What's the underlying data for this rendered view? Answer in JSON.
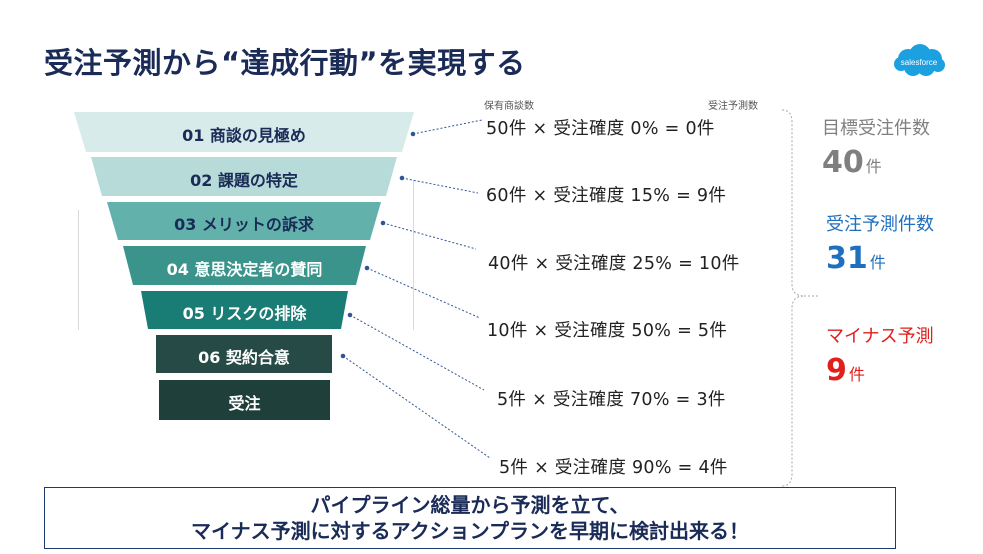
{
  "title": "受注予測から“達成行動”を実現する",
  "logo_text": "salesforce",
  "colors": {
    "title": "#1a2b57",
    "target": "#7f7f7f",
    "forecast": "#1f6fbf",
    "minus": "#e0201c",
    "stage_light_text": "#1a2b57",
    "stage_dark_text": "#ffffff"
  },
  "funnel_stages": [
    {
      "label": "01 商談の見極め",
      "fill": "#d6ebea"
    },
    {
      "label": "02 課題の特定",
      "fill": "#b6dbd8"
    },
    {
      "label": "03 メリットの訴求",
      "fill": "#62b2ab"
    },
    {
      "label": "04 意思決定者の賛同",
      "fill": "#3a948c"
    },
    {
      "label": "05 リスクの排除",
      "fill": "#1a7d75"
    },
    {
      "label": "06 契約合意",
      "fill": "#264a45"
    },
    {
      "label": "受注",
      "fill": "#1f3f3b"
    }
  ],
  "column_headers": {
    "deals": "保有商談数",
    "forecast": "受注予測数"
  },
  "calculations": [
    "50件 × 受注確度  0%   =   0件",
    "60件 × 受注確度 15%  =   9件",
    "40件 × 受注確度 25% = 10件",
    "10件 ×  受注確度 50% = 5件",
    "5件 × 受注確度 70% = 3件",
    "5件 × 受注確度 90% = 4件"
  ],
  "summary": {
    "target": {
      "label": "目標受注件数",
      "value": "40",
      "unit": "件"
    },
    "forecast": {
      "label": "受注予測件数",
      "value": "31",
      "unit": "件"
    },
    "minus": {
      "label": "マイナス予測",
      "value": "9",
      "unit": "件"
    }
  },
  "bottom_message": {
    "line1": "パイプライン総量から予測を立て、",
    "line2": "マイナス予測に対するアクションプランを早期に検討出来る！"
  }
}
